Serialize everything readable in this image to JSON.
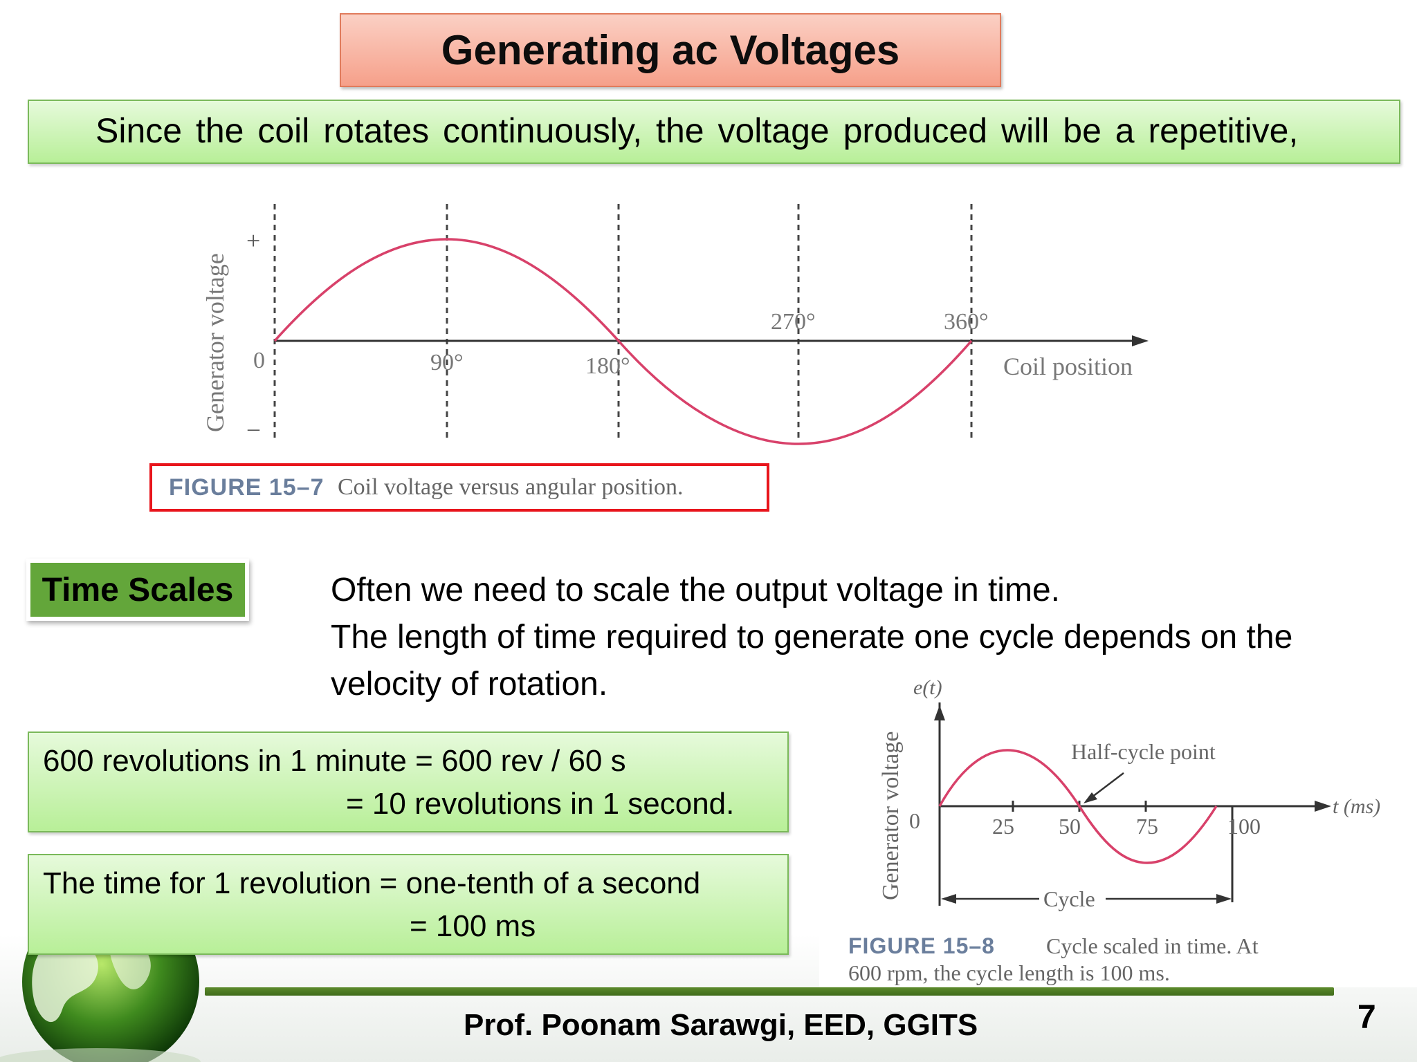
{
  "title": "Generating ac Voltages",
  "intro_bullet": {
    "marker": "",
    "text": "Since  the  coil  rotates  continuously, the  voltage produced will be a repetitive,"
  },
  "figure_15_7": {
    "ylabel": "Generator voltage",
    "y_plus": "+",
    "y_zero": "0",
    "y_minus": "–",
    "ticks": [
      "90°",
      "180°",
      "270°",
      "360°"
    ],
    "xlabel": "Coil position",
    "caption_label": "FIGURE 15–7",
    "caption_text": "Coil voltage versus angular position."
  },
  "time_scales_tag": "Time Scales",
  "bullets": [
    {
      "marker": "",
      "text": "Often we need to scale the output voltage  in time."
    },
    {
      "marker": "",
      "text": "The length of time required to generate one cycle depends on the",
      "cont": "velocity of rotation."
    }
  ],
  "calc_box_1": {
    "line1": "600 revolutions in 1 minute  = 600 rev / 60 s",
    "line2": "=  10 revolutions in 1 second."
  },
  "calc_box_2": {
    "line1": "The time for 1 revolution  = one-tenth of a second",
    "line2": "= 100 ms"
  },
  "figure_15_8": {
    "yaxis_label": "e(t)",
    "ylabel": "Generator voltage",
    "origin": "0",
    "ticks": [
      "25",
      "50",
      "75",
      "100"
    ],
    "xlabel": "t (ms)",
    "annotation": "Half-cycle point",
    "cycle_label": "Cycle",
    "caption_label": "FIGURE 15–8",
    "caption_line1": "Cycle scaled in time. At",
    "caption_line2": "600 rpm, the cycle length is 100 ms."
  },
  "colors": {
    "title_fill": "#f6a08a",
    "green_box_fill": "#b8ef98",
    "time_scales_fill": "#63a63a",
    "sine_curve": "#d8416a",
    "caption_border": "#e8151c",
    "footer_bar": "#4a7a22"
  },
  "footer": "Prof. Poonam Sarawgi, EED, GGITS",
  "page_number": "7"
}
